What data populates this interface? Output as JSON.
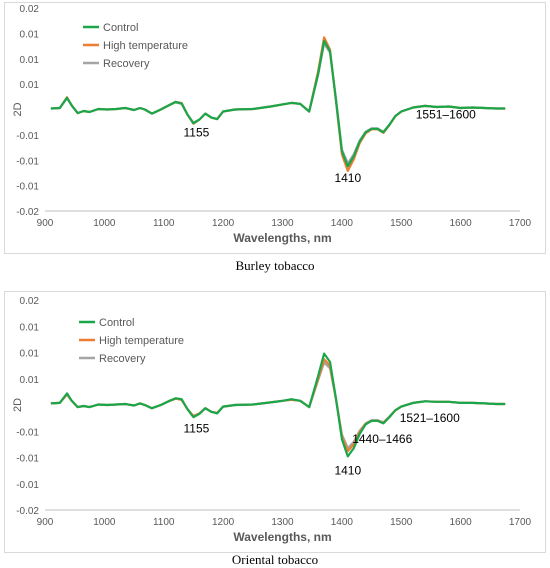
{
  "chart_data": [
    {
      "type": "line",
      "caption": "Burley tobacco",
      "ylabel": "2D",
      "xlabel": "Wavelengths, nm",
      "xlim": [
        900,
        1700
      ],
      "x_ticks": [
        900,
        1000,
        1100,
        1200,
        1300,
        1400,
        1500,
        1600,
        1700
      ],
      "ylim": [
        -0.02,
        0.02
      ],
      "y_tick_values": [
        -0.02,
        -0.015,
        -0.01,
        -0.005,
        0,
        0.005,
        0.01,
        0.015,
        0.02
      ],
      "y_tick_labels": [
        "-0.02",
        "-0.01",
        "-0.01",
        "-0.01",
        "",
        "0.01",
        "0.01",
        "0.01",
        "0.02"
      ],
      "legend_position": "top-left",
      "grid": false,
      "colors": {
        "Control": "#1aa64b",
        "High temperature": "#ed7d31",
        "Recovery": "#a5a5a5"
      },
      "x": [
        910,
        925,
        937,
        945,
        955,
        965,
        975,
        990,
        1005,
        1020,
        1035,
        1050,
        1060,
        1068,
        1080,
        1095,
        1110,
        1120,
        1130,
        1140,
        1150,
        1160,
        1170,
        1180,
        1190,
        1200,
        1220,
        1250,
        1280,
        1300,
        1315,
        1330,
        1345,
        1360,
        1370,
        1380,
        1390,
        1400,
        1410,
        1420,
        1430,
        1440,
        1450,
        1460,
        1470,
        1480,
        1490,
        1500,
        1520,
        1540,
        1560,
        1580,
        1600,
        1620,
        1640,
        1660,
        1675
      ],
      "series": [
        {
          "name": "Control",
          "values": [
            0.0002,
            0.0003,
            0.0023,
            0.0008,
            -0.0007,
            -0.0003,
            -0.0005,
            0.0001,
            0.0,
            0.0001,
            0.0003,
            -0.0001,
            0.0003,
            0.0,
            -0.0008,
            0.0,
            0.0009,
            0.0015,
            0.0012,
            -0.001,
            -0.0027,
            -0.002,
            -0.0008,
            -0.0016,
            -0.0019,
            -0.0004,
            0.0,
            0.0001,
            0.0006,
            0.001,
            0.0013,
            0.0011,
            -0.0004,
            0.007,
            0.0135,
            0.0115,
            0.002,
            -0.0082,
            -0.0112,
            -0.0092,
            -0.0063,
            -0.0045,
            -0.0038,
            -0.0038,
            -0.0045,
            -0.003,
            -0.0013,
            -0.0004,
            0.0004,
            0.0007,
            0.0005,
            0.0006,
            0.0003,
            0.0004,
            0.0003,
            0.0002,
            0.0002
          ]
        },
        {
          "name": "High temperature",
          "values": [
            0.0002,
            0.0003,
            0.0024,
            0.0008,
            -0.0007,
            -0.0003,
            -0.0005,
            0.0001,
            0.0,
            0.0001,
            0.0003,
            -0.0001,
            0.0003,
            0.0,
            -0.0008,
            0.0,
            0.0009,
            0.0015,
            0.0013,
            -0.001,
            -0.0028,
            -0.002,
            -0.0008,
            -0.0016,
            -0.0019,
            -0.0004,
            0.0,
            0.0001,
            0.0006,
            0.001,
            0.0013,
            0.0011,
            -0.0004,
            0.0075,
            0.0142,
            0.0118,
            0.0018,
            -0.0088,
            -0.0121,
            -0.0098,
            -0.0066,
            -0.0047,
            -0.0039,
            -0.0039,
            -0.0046,
            -0.0031,
            -0.0013,
            -0.0004,
            0.0004,
            0.0007,
            0.0005,
            0.0006,
            0.0003,
            0.0004,
            0.0003,
            0.0002,
            0.0002
          ]
        },
        {
          "name": "Recovery",
          "values": [
            0.0002,
            0.0003,
            0.0022,
            0.0008,
            -0.0007,
            -0.0003,
            -0.0005,
            0.0001,
            0.0,
            0.0001,
            0.0003,
            -0.0001,
            0.0003,
            0.0,
            -0.0008,
            0.0,
            0.0009,
            0.0014,
            0.0011,
            -0.001,
            -0.0026,
            -0.002,
            -0.0008,
            -0.0016,
            -0.0019,
            -0.0004,
            0.0,
            0.0001,
            0.0006,
            0.001,
            0.0013,
            0.0011,
            -0.0004,
            0.0068,
            0.013,
            0.0112,
            0.0022,
            -0.0079,
            -0.0106,
            -0.0088,
            -0.0061,
            -0.0044,
            -0.0037,
            -0.0037,
            -0.0044,
            -0.003,
            -0.0013,
            -0.0004,
            0.0004,
            0.0007,
            0.0005,
            0.0006,
            0.0003,
            0.0004,
            0.0003,
            0.0002,
            0.0002
          ]
        }
      ],
      "annotations": [
        {
          "text": "1155",
          "x": 1155,
          "y": -0.0045
        },
        {
          "text": "1410",
          "x": 1410,
          "y": -0.0135
        },
        {
          "text": "1551–1600",
          "x": 1575,
          "y": -0.001
        }
      ]
    },
    {
      "type": "line",
      "caption": "Oriental tobacco",
      "ylabel": "2D",
      "xlabel": "Wavelengths, nm",
      "xlim": [
        900,
        1700
      ],
      "x_ticks": [
        900,
        1000,
        1100,
        1200,
        1300,
        1400,
        1500,
        1600,
        1700
      ],
      "ylim": [
        -0.02,
        0.02
      ],
      "y_tick_values": [
        -0.02,
        -0.015,
        -0.01,
        -0.005,
        0,
        0.005,
        0.01,
        0.015,
        0.02
      ],
      "y_tick_labels": [
        "-0.02",
        "-0.01",
        "-0.01",
        "-0.01",
        "",
        "0.01",
        "0.01",
        "0.01",
        "0.02"
      ],
      "legend_position": "top-left",
      "grid": false,
      "colors": {
        "Control": "#1aa64b",
        "High temperature": "#ed7d31",
        "Recovery": "#a5a5a5"
      },
      "x": [
        910,
        925,
        937,
        945,
        955,
        965,
        975,
        990,
        1005,
        1020,
        1035,
        1050,
        1060,
        1068,
        1080,
        1095,
        1110,
        1120,
        1130,
        1140,
        1150,
        1160,
        1170,
        1180,
        1190,
        1200,
        1220,
        1250,
        1280,
        1300,
        1315,
        1330,
        1345,
        1360,
        1370,
        1380,
        1390,
        1400,
        1410,
        1420,
        1430,
        1440,
        1450,
        1460,
        1470,
        1480,
        1490,
        1500,
        1520,
        1540,
        1560,
        1580,
        1600,
        1620,
        1640,
        1660,
        1675
      ],
      "series": [
        {
          "name": "Control",
          "values": [
            0.0003,
            0.0004,
            0.0022,
            0.0008,
            -0.0004,
            -0.0002,
            -0.0004,
            0.0001,
            0.0,
            0.0001,
            0.0002,
            -0.0001,
            0.0003,
            0.0,
            -0.0006,
            0.0,
            0.0008,
            0.0013,
            0.0011,
            -0.0008,
            -0.0023,
            -0.0017,
            -0.0006,
            -0.0013,
            -0.0016,
            -0.0003,
            0.0,
            0.0001,
            0.0005,
            0.0008,
            0.0011,
            0.0008,
            -0.0004,
            0.0055,
            0.0098,
            0.0082,
            0.0013,
            -0.0065,
            -0.0098,
            -0.0082,
            -0.0055,
            -0.0037,
            -0.003,
            -0.003,
            -0.0035,
            -0.0023,
            -0.001,
            -0.0003,
            0.0004,
            0.0007,
            0.0006,
            0.0006,
            0.0004,
            0.0004,
            0.0003,
            0.0002,
            0.0002
          ]
        },
        {
          "name": "High temperature",
          "values": [
            0.0003,
            0.0004,
            0.002,
            0.0008,
            -0.0004,
            -0.0002,
            -0.0004,
            0.0001,
            0.0,
            0.0001,
            0.0002,
            -0.0001,
            0.0003,
            0.0,
            -0.0006,
            0.0,
            0.0008,
            0.0012,
            0.001,
            -0.0008,
            -0.0021,
            -0.0016,
            -0.0006,
            -0.0013,
            -0.0015,
            -0.0003,
            0.0,
            0.0001,
            0.0005,
            0.0008,
            0.001,
            0.0008,
            -0.0004,
            0.005,
            0.0087,
            0.0075,
            0.0012,
            -0.006,
            -0.0088,
            -0.0075,
            -0.0052,
            -0.0036,
            -0.003,
            -0.003,
            -0.0034,
            -0.0023,
            -0.001,
            -0.0003,
            0.0004,
            0.0007,
            0.0006,
            0.0006,
            0.0004,
            0.0004,
            0.0003,
            0.0002,
            0.0002
          ]
        },
        {
          "name": "Recovery",
          "values": [
            0.0003,
            0.0004,
            0.0021,
            0.0008,
            -0.0004,
            -0.0002,
            -0.0004,
            0.0001,
            0.0,
            0.0001,
            0.0002,
            -0.0001,
            0.0003,
            0.0,
            -0.0006,
            0.0,
            0.0008,
            0.0012,
            0.001,
            -0.0008,
            -0.0022,
            -0.0016,
            -0.0006,
            -0.0013,
            -0.0015,
            -0.0003,
            0.0,
            0.0001,
            0.0005,
            0.0008,
            0.001,
            0.0008,
            -0.0004,
            0.0047,
            0.0081,
            0.007,
            0.0012,
            -0.0056,
            -0.0082,
            -0.007,
            -0.0049,
            -0.0035,
            -0.0029,
            -0.0029,
            -0.0033,
            -0.0022,
            -0.001,
            -0.0003,
            0.0004,
            0.0007,
            0.0006,
            0.0006,
            0.0004,
            0.0004,
            0.0003,
            0.0002,
            0.0002
          ]
        }
      ],
      "annotations": [
        {
          "text": "1155",
          "x": 1155,
          "y": -0.0045
        },
        {
          "text": "1410",
          "x": 1410,
          "y": -0.0125
        },
        {
          "text": "1440–1466",
          "x": 1468,
          "y": -0.0065
        },
        {
          "text": "1521–1600",
          "x": 1548,
          "y": -0.0025
        }
      ]
    }
  ]
}
